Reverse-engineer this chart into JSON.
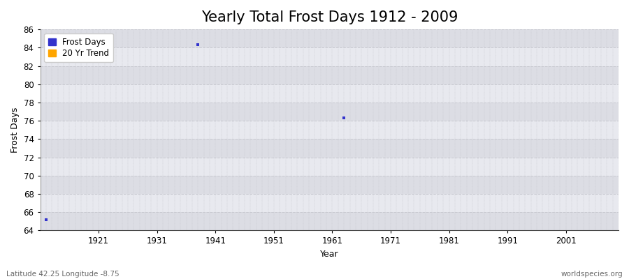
{
  "title": "Yearly Total Frost Days 1912 - 2009",
  "xlabel": "Year",
  "ylabel": "Frost Days",
  "subtitle_left": "Latitude 42.25 Longitude -8.75",
  "subtitle_right": "worldspecies.org",
  "xlim": [
    1911,
    2010
  ],
  "ylim": [
    64,
    86
  ],
  "yticks": [
    64,
    66,
    68,
    70,
    72,
    74,
    76,
    78,
    80,
    82,
    84,
    86
  ],
  "xticks": [
    1921,
    1931,
    1941,
    1951,
    1961,
    1971,
    1981,
    1991,
    2001
  ],
  "data_points": [
    {
      "year": 1912,
      "value": 65.2
    },
    {
      "year": 1938,
      "value": 84.3
    },
    {
      "year": 1963,
      "value": 76.3
    }
  ],
  "point_color": "#3333cc",
  "point_size": 3,
  "trend_color": "#ffa500",
  "bg_dark": "#dcdde4",
  "bg_light": "#e8e9ef",
  "grid_color": "#c8c9d0",
  "subtitle_color": "#666666",
  "legend_frost_label": "Frost Days",
  "legend_trend_label": "20 Yr Trend",
  "title_fontsize": 15,
  "axis_label_fontsize": 9,
  "tick_fontsize": 8.5
}
